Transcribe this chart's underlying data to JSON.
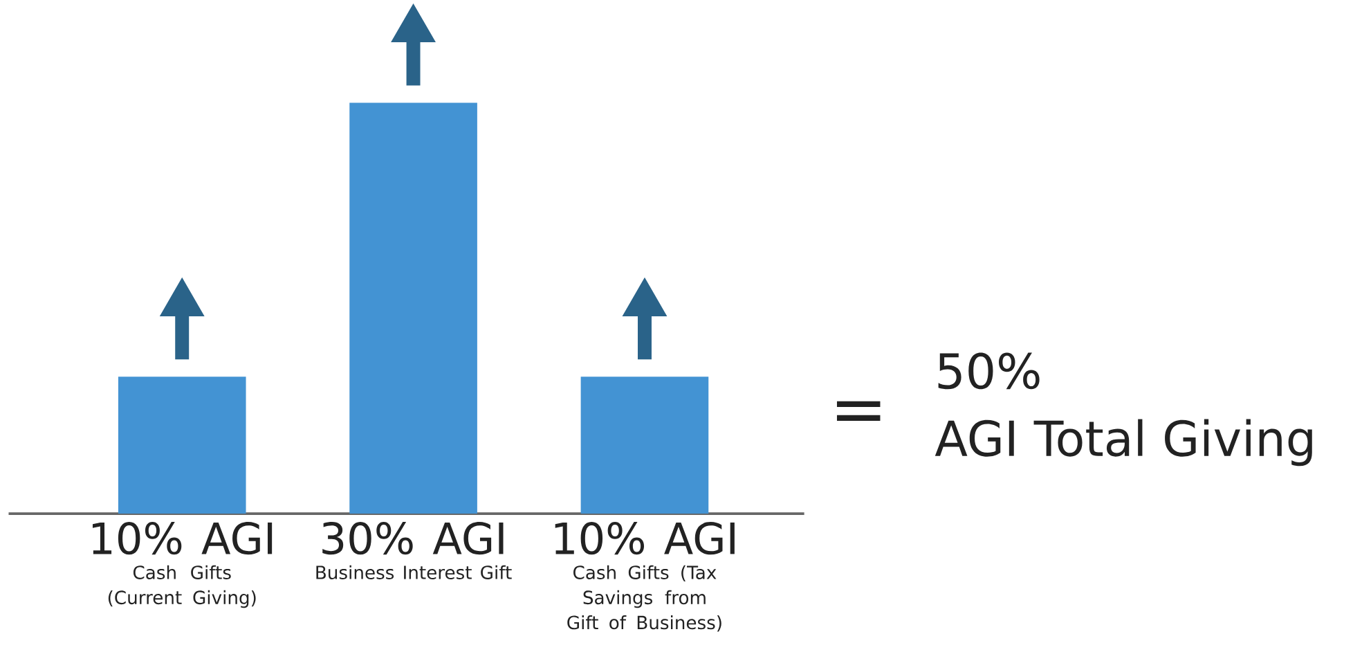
{
  "chart_data": {
    "type": "bar",
    "categories": [
      "Cash Gifts (Current Giving)",
      "Business Interest Gift",
      "Cash Gifts (Tax Savings from Gift of Business)"
    ],
    "values": [
      10,
      30,
      10
    ],
    "value_labels": [
      "10% AGI",
      "30% AGI",
      "10% AGI"
    ],
    "color": "#4393d3",
    "annotations": [
      "=",
      "50%",
      "AGI Total Giving"
    ]
  }
}
